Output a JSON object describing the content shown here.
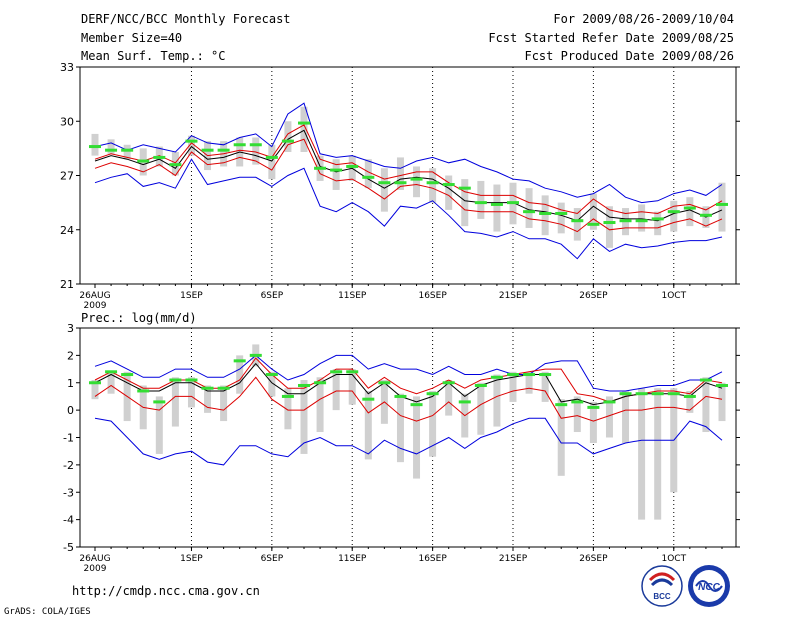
{
  "header": {
    "title": "DERF/NCC/BCC Monthly Forecast",
    "member_size": "Member Size=40",
    "variable": "Mean Surf. Temp.: °C",
    "period": "For 2009/08/26-2009/10/04",
    "started": "Fcst Started Refer Date 2009/08/25",
    "produced": "Fcst Produced Date 2009/08/26"
  },
  "footer": {
    "url": "http://cmdp.ncc.cma.gov.cn",
    "credit": "GrADS: COLA/IGES",
    "logo_left": "BCC",
    "logo_right": "NCC"
  },
  "colors": {
    "max_min": "#0000dd",
    "spread": "#dd0000",
    "mean": "#000000",
    "ctrl": "#33dd33",
    "boxes": "#d0d0d0"
  },
  "chart_data": [
    {
      "type": "line",
      "title": "Mean Surf. Temp.: °C",
      "xlabel": "",
      "ylabel": "°C",
      "ylim": [
        21,
        33
      ],
      "yticks": [
        21,
        24,
        27,
        30,
        33
      ],
      "xlim": [
        0,
        40
      ],
      "xticks": [
        {
          "day": 0,
          "label": "26AUG",
          "sub": "2009"
        },
        {
          "day": 6,
          "label": "1SEP"
        },
        {
          "day": 11,
          "label": "6SEP"
        },
        {
          "day": 16,
          "label": "11SEP"
        },
        {
          "day": 21,
          "label": "16SEP"
        },
        {
          "day": 26,
          "label": "21SEP"
        },
        {
          "day": 31,
          "label": "26SEP"
        },
        {
          "day": 36,
          "label": "1OCT"
        }
      ],
      "days": [
        0,
        1,
        2,
        3,
        4,
        5,
        6,
        7,
        8,
        9,
        10,
        11,
        12,
        13,
        14,
        15,
        16,
        17,
        18,
        19,
        20,
        21,
        22,
        23,
        24,
        25,
        26,
        27,
        28,
        29,
        30,
        31,
        32,
        33,
        34,
        35,
        36,
        37,
        38,
        39
      ],
      "series": [
        {
          "name": "max",
          "values": [
            28.6,
            28.8,
            28.4,
            28.7,
            28.5,
            28.3,
            29.2,
            28.8,
            28.7,
            29.1,
            29.3,
            28.6,
            30.4,
            31.0,
            28.2,
            28.0,
            28.1,
            27.8,
            27.5,
            27.4,
            27.8,
            28.0,
            27.7,
            27.9,
            27.5,
            27.2,
            26.8,
            26.7,
            26.3,
            26.1,
            25.8,
            26.0,
            26.5,
            25.8,
            25.5,
            25.6,
            26.0,
            26.2,
            25.9,
            26.5
          ]
        },
        {
          "name": "upper",
          "values": [
            27.9,
            28.2,
            28.0,
            27.8,
            28.1,
            27.7,
            28.8,
            28.1,
            28.2,
            28.4,
            28.3,
            28.0,
            29.3,
            29.8,
            27.9,
            27.6,
            27.7,
            27.2,
            26.8,
            27.0,
            27.2,
            27.2,
            26.6,
            26.1,
            25.9,
            25.9,
            25.9,
            25.5,
            25.4,
            25.1,
            24.9,
            25.7,
            25.1,
            24.9,
            25.0,
            24.9,
            25.3,
            25.4,
            25.1,
            25.6
          ]
        },
        {
          "name": "mean",
          "values": [
            27.8,
            28.1,
            27.9,
            27.6,
            27.9,
            27.4,
            28.6,
            27.9,
            28.0,
            28.3,
            28.1,
            27.8,
            29.0,
            29.5,
            27.5,
            27.2,
            27.4,
            26.8,
            26.3,
            26.8,
            26.9,
            26.8,
            26.3,
            25.6,
            25.5,
            25.5,
            25.5,
            25.1,
            25.0,
            24.8,
            24.5,
            25.3,
            24.7,
            24.6,
            24.6,
            24.5,
            24.9,
            25.1,
            24.7,
            25.1
          ]
        },
        {
          "name": "lower",
          "values": [
            27.4,
            27.7,
            27.5,
            27.2,
            27.6,
            27.0,
            28.3,
            27.6,
            27.7,
            28.0,
            27.8,
            27.3,
            28.7,
            29.0,
            27.1,
            26.7,
            26.8,
            26.3,
            25.7,
            26.4,
            26.5,
            26.3,
            25.9,
            25.1,
            25.0,
            25.0,
            25.0,
            24.6,
            24.5,
            24.3,
            23.9,
            24.6,
            24.0,
            24.1,
            24.1,
            24.1,
            24.4,
            24.6,
            24.2,
            24.6
          ]
        },
        {
          "name": "min",
          "values": [
            26.6,
            26.9,
            27.1,
            26.4,
            26.6,
            26.3,
            27.9,
            26.5,
            26.7,
            26.9,
            26.9,
            26.4,
            27.0,
            27.4,
            25.3,
            25.0,
            25.5,
            25.0,
            24.2,
            25.3,
            25.2,
            25.6,
            24.8,
            23.9,
            23.8,
            23.6,
            23.9,
            23.5,
            23.5,
            23.2,
            22.4,
            23.5,
            22.8,
            23.2,
            23.0,
            23.1,
            23.3,
            23.4,
            23.4,
            23.6
          ]
        },
        {
          "name": "ctrl",
          "values": [
            28.6,
            28.4,
            28.4,
            27.8,
            28.0,
            27.6,
            28.9,
            28.4,
            28.4,
            28.7,
            28.7,
            28.0,
            28.9,
            29.9,
            27.4,
            27.3,
            27.5,
            26.9,
            26.6,
            26.6,
            26.8,
            26.6,
            26.5,
            26.3,
            25.5,
            25.4,
            25.5,
            25.0,
            24.9,
            24.9,
            24.5,
            24.3,
            24.4,
            24.5,
            24.5,
            24.6,
            25.0,
            25.2,
            24.8,
            25.4
          ]
        }
      ],
      "boxes": {
        "low": [
          28.1,
          28.2,
          27.9,
          27.0,
          27.5,
          27.0,
          28.1,
          27.3,
          27.5,
          27.5,
          27.6,
          26.8,
          28.3,
          28.3,
          26.7,
          26.2,
          26.7,
          26.3,
          25.0,
          26.2,
          25.8,
          25.5,
          25.1,
          24.2,
          24.6,
          23.9,
          24.3,
          24.1,
          23.7,
          23.8,
          23.4,
          24.0,
          23.0,
          23.7,
          23.9,
          23.7,
          23.9,
          24.2,
          24.1,
          23.9
        ],
        "high": [
          29.3,
          29.0,
          28.7,
          28.5,
          28.6,
          28.3,
          29.2,
          28.9,
          28.9,
          29.1,
          29.1,
          28.7,
          30.0,
          30.8,
          28.1,
          27.9,
          28.1,
          27.9,
          27.4,
          28.0,
          27.5,
          27.4,
          27.0,
          26.8,
          26.7,
          26.5,
          26.6,
          26.3,
          25.9,
          25.5,
          25.2,
          26.0,
          25.3,
          25.2,
          25.4,
          25.0,
          25.6,
          25.8,
          25.3,
          26.6
        ]
      }
    },
    {
      "type": "line",
      "title": "Prec.: log(mm/d)",
      "xlabel": "",
      "ylabel": "log(mm/d)",
      "ylim": [
        -5,
        3
      ],
      "yticks": [
        -5,
        -4,
        -3,
        -2,
        -1,
        0,
        1,
        2,
        3
      ],
      "xlim": [
        0,
        40
      ],
      "xticks": [
        {
          "day": 0,
          "label": "26AUG",
          "sub": "2009"
        },
        {
          "day": 6,
          "label": "1SEP"
        },
        {
          "day": 11,
          "label": "6SEP"
        },
        {
          "day": 16,
          "label": "11SEP"
        },
        {
          "day": 21,
          "label": "16SEP"
        },
        {
          "day": 26,
          "label": "21SEP"
        },
        {
          "day": 31,
          "label": "26SEP"
        },
        {
          "day": 36,
          "label": "1OCT"
        }
      ],
      "days": [
        0,
        1,
        2,
        3,
        4,
        5,
        6,
        7,
        8,
        9,
        10,
        11,
        12,
        13,
        14,
        15,
        16,
        17,
        18,
        19,
        20,
        21,
        22,
        23,
        24,
        25,
        26,
        27,
        28,
        29,
        30,
        31,
        32,
        33,
        34,
        35,
        36,
        37,
        38,
        39
      ],
      "series": [
        {
          "name": "max",
          "values": [
            1.6,
            1.8,
            1.5,
            1.2,
            1.2,
            1.5,
            1.5,
            1.2,
            1.2,
            1.5,
            2.0,
            1.5,
            1.1,
            1.3,
            1.7,
            2.0,
            2.0,
            1.5,
            1.7,
            1.5,
            1.5,
            1.3,
            1.6,
            1.3,
            1.3,
            1.5,
            1.3,
            1.3,
            1.7,
            1.8,
            1.8,
            0.8,
            0.7,
            0.7,
            0.8,
            0.9,
            0.9,
            1.1,
            1.1,
            1.4
          ]
        },
        {
          "name": "upper",
          "values": [
            1.1,
            1.4,
            1.1,
            0.8,
            0.8,
            1.1,
            1.1,
            0.8,
            0.8,
            1.1,
            1.9,
            1.3,
            0.8,
            0.8,
            1.1,
            1.5,
            1.5,
            0.8,
            1.2,
            0.8,
            0.6,
            0.8,
            1.1,
            0.8,
            1.1,
            1.2,
            1.3,
            1.4,
            1.5,
            1.5,
            0.6,
            0.5,
            0.3,
            0.5,
            0.6,
            0.7,
            0.7,
            0.6,
            1.1,
            1.0
          ]
        },
        {
          "name": "mean",
          "values": [
            1.0,
            1.3,
            1.0,
            0.7,
            0.7,
            1.0,
            1.0,
            0.7,
            0.7,
            1.0,
            1.7,
            1.0,
            0.6,
            0.6,
            1.0,
            1.3,
            1.3,
            0.6,
            1.0,
            0.5,
            0.3,
            0.5,
            1.0,
            0.5,
            0.9,
            1.1,
            1.2,
            1.3,
            1.3,
            0.3,
            0.4,
            0.2,
            0.3,
            0.5,
            0.6,
            0.6,
            0.6,
            0.5,
            1.0,
            0.8
          ]
        },
        {
          "name": "lower",
          "values": [
            0.5,
            0.9,
            0.5,
            0.1,
            0.0,
            0.5,
            0.5,
            0.1,
            0.0,
            0.5,
            1.2,
            0.4,
            0.0,
            0.0,
            0.4,
            0.7,
            0.7,
            -0.1,
            0.3,
            -0.2,
            -0.4,
            -0.2,
            0.3,
            -0.2,
            0.2,
            0.5,
            0.7,
            0.8,
            0.7,
            -0.3,
            -0.2,
            -0.4,
            -0.2,
            0.0,
            0.0,
            0.1,
            0.1,
            0.0,
            0.5,
            0.4
          ]
        },
        {
          "name": "min",
          "values": [
            -0.3,
            -0.4,
            -1.0,
            -1.6,
            -1.8,
            -1.6,
            -1.5,
            -1.9,
            -2.0,
            -1.3,
            -1.3,
            -1.6,
            -1.7,
            -1.2,
            -1.0,
            -1.3,
            -1.3,
            -1.6,
            -1.1,
            -1.4,
            -1.6,
            -1.3,
            -1.0,
            -1.4,
            -1.0,
            -0.8,
            -0.5,
            -0.3,
            -0.3,
            -1.2,
            -1.2,
            -1.6,
            -1.4,
            -1.2,
            -1.1,
            -1.1,
            -1.1,
            -0.4,
            -0.6,
            -1.1
          ]
        },
        {
          "name": "ctrl",
          "values": [
            1.0,
            1.4,
            1.3,
            0.7,
            0.3,
            1.1,
            1.1,
            0.8,
            0.8,
            1.8,
            2.0,
            1.3,
            0.5,
            0.9,
            1.0,
            1.4,
            1.4,
            0.4,
            1.0,
            0.5,
            0.2,
            0.6,
            1.0,
            0.3,
            0.9,
            1.2,
            1.3,
            1.3,
            1.3,
            0.2,
            0.3,
            0.1,
            0.3,
            0.6,
            0.6,
            0.6,
            0.6,
            0.5,
            1.1,
            0.9
          ]
        }
      ],
      "boxes": {
        "low": [
          0.4,
          0.6,
          -0.4,
          -0.7,
          -1.6,
          -0.6,
          0.1,
          -0.1,
          -0.4,
          0.6,
          1.6,
          0.5,
          -0.7,
          -1.6,
          -0.8,
          0.0,
          0.2,
          -1.8,
          -0.5,
          -1.9,
          -2.5,
          -1.7,
          -0.2,
          -1.0,
          -0.9,
          -0.6,
          0.3,
          0.6,
          0.3,
          -2.4,
          -0.8,
          -1.2,
          -1.0,
          -1.2,
          -4.0,
          -4.0,
          -3.0,
          -0.1,
          -0.8,
          -0.4
        ],
        "high": [
          1.1,
          1.4,
          1.4,
          0.9,
          0.5,
          1.2,
          1.2,
          0.9,
          0.9,
          2.0,
          2.4,
          1.4,
          0.8,
          1.1,
          1.2,
          1.5,
          1.5,
          0.7,
          1.1,
          0.6,
          0.5,
          0.7,
          1.1,
          0.6,
          1.0,
          1.3,
          1.4,
          1.4,
          1.4,
          0.4,
          0.5,
          0.3,
          0.5,
          0.7,
          0.8,
          0.8,
          0.8,
          0.7,
          1.2,
          1.0
        ]
      }
    }
  ]
}
